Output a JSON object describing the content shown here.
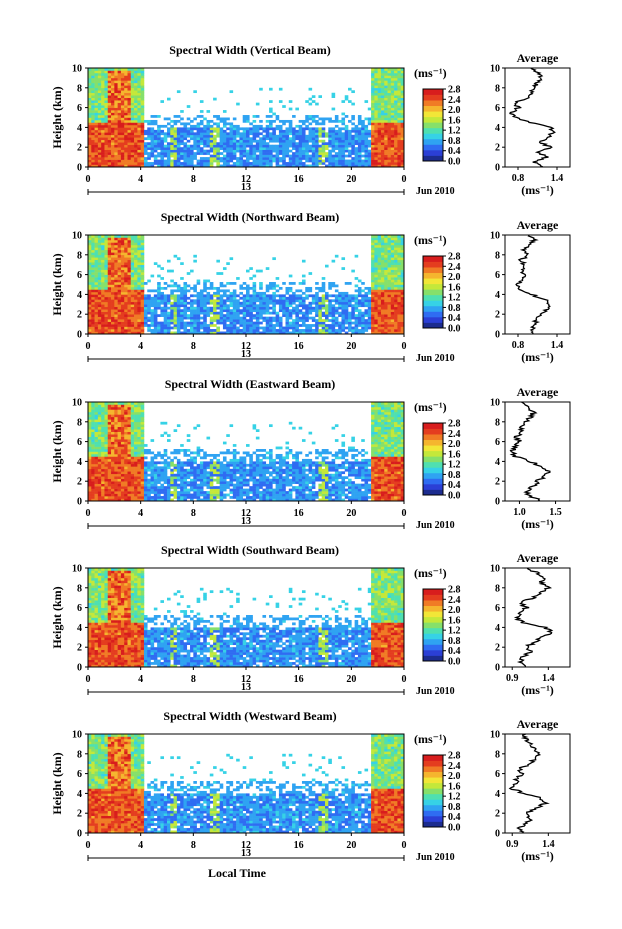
{
  "figure": {
    "x_label": "Local Time",
    "date_label": "Jun 2010",
    "colorbar_unit": "(ms⁻¹)",
    "average_title": "Average"
  },
  "chart_data": [
    {
      "type": "heatmap",
      "title": "Spectral Width (Vertical Beam)",
      "ylabel": "Height (km)",
      "xlabel": "",
      "x_ticks": [
        "0",
        "4",
        "8",
        "12",
        "16",
        "20",
        "0"
      ],
      "date_tick": "13",
      "y_ticks": [
        "0",
        "2",
        "4",
        "6",
        "8",
        "10"
      ],
      "ylim": [
        0,
        10
      ],
      "colorbar": {
        "label": "(ms⁻¹)",
        "ticks": [
          "0.0",
          "0.4",
          "0.8",
          "1.2",
          "1.6",
          "2.0",
          "2.4",
          "2.8"
        ],
        "range": [
          0,
          2.8
        ]
      },
      "average_profile": {
        "title": "Average",
        "xlabel": "(ms⁻¹)",
        "x_ticks": [
          "0.8",
          "1.4"
        ],
        "xlim": [
          0.6,
          1.6
        ],
        "heights": [
          0,
          0.5,
          1,
          1.5,
          2,
          2.5,
          3,
          3.5,
          4,
          4.5,
          5,
          5.5,
          6,
          6.5,
          7,
          7.5,
          8,
          8.5,
          9,
          9.5,
          10
        ],
        "values": [
          1.2,
          1.05,
          1.25,
          1.1,
          1.3,
          1.15,
          1.25,
          1.35,
          1.3,
          1.0,
          0.75,
          0.7,
          0.8,
          0.75,
          0.95,
          1.0,
          1.05,
          1.1,
          1.15,
          1.1,
          1.0
        ]
      }
    },
    {
      "type": "heatmap",
      "title": "Spectral Width (Northward Beam)",
      "ylabel": "Height (km)",
      "xlabel": "",
      "x_ticks": [
        "0",
        "4",
        "8",
        "12",
        "16",
        "20",
        "0"
      ],
      "date_tick": "13",
      "y_ticks": [
        "0",
        "2",
        "4",
        "6",
        "8",
        "10"
      ],
      "ylim": [
        0,
        10
      ],
      "colorbar": {
        "label": "(ms⁻¹)",
        "ticks": [
          "0.0",
          "0.4",
          "0.8",
          "1.2",
          "1.6",
          "2.0",
          "2.4",
          "2.8"
        ],
        "range": [
          0,
          2.8
        ]
      },
      "average_profile": {
        "title": "Average",
        "xlabel": "(ms⁻¹)",
        "x_ticks": [
          "0.8",
          "1.4"
        ],
        "xlim": [
          0.6,
          1.6
        ],
        "heights": [
          0,
          0.5,
          1,
          1.5,
          2,
          2.5,
          3,
          3.5,
          4,
          4.5,
          5,
          5.5,
          6,
          6.5,
          7,
          7.5,
          8,
          8.5,
          9,
          9.5,
          10
        ],
        "values": [
          1.05,
          1.0,
          1.1,
          1.05,
          1.15,
          1.25,
          1.3,
          1.2,
          1.0,
          0.85,
          0.8,
          0.85,
          0.9,
          0.85,
          0.9,
          0.85,
          0.95,
          0.9,
          1.0,
          1.05,
          0.95
        ]
      }
    },
    {
      "type": "heatmap",
      "title": "Spectral Width (Eastward Beam)",
      "ylabel": "Height (km)",
      "xlabel": "",
      "x_ticks": [
        "0",
        "4",
        "8",
        "12",
        "16",
        "20",
        "0"
      ],
      "date_tick": "13",
      "y_ticks": [
        "0",
        "2",
        "4",
        "6",
        "8",
        "10"
      ],
      "ylim": [
        0,
        10
      ],
      "colorbar": {
        "label": "(ms⁻¹)",
        "ticks": [
          "0.0",
          "0.4",
          "0.8",
          "1.2",
          "1.6",
          "2.0",
          "2.4",
          "2.8"
        ],
        "range": [
          0,
          2.8
        ]
      },
      "average_profile": {
        "title": "Average",
        "xlabel": "(ms⁻¹)",
        "x_ticks": [
          "1.0",
          "1.5"
        ],
        "xlim": [
          0.8,
          1.7
        ],
        "heights": [
          0,
          0.5,
          1,
          1.5,
          2,
          2.5,
          3,
          3.5,
          4,
          4.5,
          5,
          5.5,
          6,
          6.5,
          7,
          7.5,
          8,
          8.5,
          9,
          9.5,
          10
        ],
        "values": [
          1.3,
          1.15,
          1.1,
          1.2,
          1.25,
          1.35,
          1.4,
          1.3,
          1.15,
          0.95,
          0.9,
          0.95,
          1.0,
          0.95,
          1.05,
          1.0,
          1.1,
          1.15,
          1.2,
          1.1,
          1.05
        ]
      }
    },
    {
      "type": "heatmap",
      "title": "Spectral Width (Southward Beam)",
      "ylabel": "Height (km)",
      "xlabel": "",
      "x_ticks": [
        "0",
        "4",
        "8",
        "12",
        "16",
        "20",
        "0"
      ],
      "date_tick": "13",
      "y_ticks": [
        "0",
        "2",
        "4",
        "6",
        "8",
        "10"
      ],
      "ylim": [
        0,
        10
      ],
      "colorbar": {
        "label": "(ms⁻¹)",
        "ticks": [
          "0.0",
          "0.4",
          "0.8",
          "1.2",
          "1.6",
          "2.0",
          "2.4",
          "2.8"
        ],
        "range": [
          0,
          2.8
        ]
      },
      "average_profile": {
        "title": "Average",
        "xlabel": "(ms⁻¹)",
        "x_ticks": [
          "0.9",
          "1.4"
        ],
        "xlim": [
          0.8,
          1.7
        ],
        "heights": [
          0,
          0.5,
          1,
          1.5,
          2,
          2.5,
          3,
          3.5,
          4,
          4.5,
          5,
          5.5,
          6,
          6.5,
          7,
          7.5,
          8,
          8.5,
          9,
          9.5,
          10
        ],
        "values": [
          1.1,
          1.0,
          1.05,
          1.15,
          1.1,
          1.2,
          1.3,
          1.45,
          1.35,
          1.05,
          0.95,
          1.0,
          1.1,
          1.0,
          1.2,
          1.3,
          1.4,
          1.3,
          1.35,
          1.25,
          1.1
        ]
      }
    },
    {
      "type": "heatmap",
      "title": "Spectral Width (Westward Beam)",
      "ylabel": "Height (km)",
      "xlabel": "Local Time",
      "x_ticks": [
        "0",
        "4",
        "8",
        "12",
        "16",
        "20",
        "0"
      ],
      "date_tick": "13",
      "y_ticks": [
        "0",
        "2",
        "4",
        "6",
        "8",
        "10"
      ],
      "ylim": [
        0,
        10
      ],
      "colorbar": {
        "label": "(ms⁻¹)",
        "ticks": [
          "0.0",
          "0.4",
          "0.8",
          "1.2",
          "1.6",
          "2.0",
          "2.4",
          "2.8"
        ],
        "range": [
          0,
          2.8
        ]
      },
      "average_profile": {
        "title": "Average",
        "xlabel": "(ms⁻¹)",
        "x_ticks": [
          "0.9",
          "1.4"
        ],
        "xlim": [
          0.8,
          1.7
        ],
        "heights": [
          0,
          0.5,
          1,
          1.5,
          2,
          2.5,
          3,
          3.5,
          4,
          4.5,
          5,
          5.5,
          6,
          6.5,
          7,
          7.5,
          8,
          8.5,
          9,
          9.5,
          10
        ],
        "values": [
          1.05,
          1.0,
          1.1,
          1.15,
          1.1,
          1.25,
          1.35,
          1.3,
          1.05,
          0.9,
          0.95,
          0.95,
          1.05,
          1.0,
          1.15,
          1.2,
          1.25,
          1.2,
          1.15,
          1.1,
          1.05
        ]
      }
    }
  ]
}
